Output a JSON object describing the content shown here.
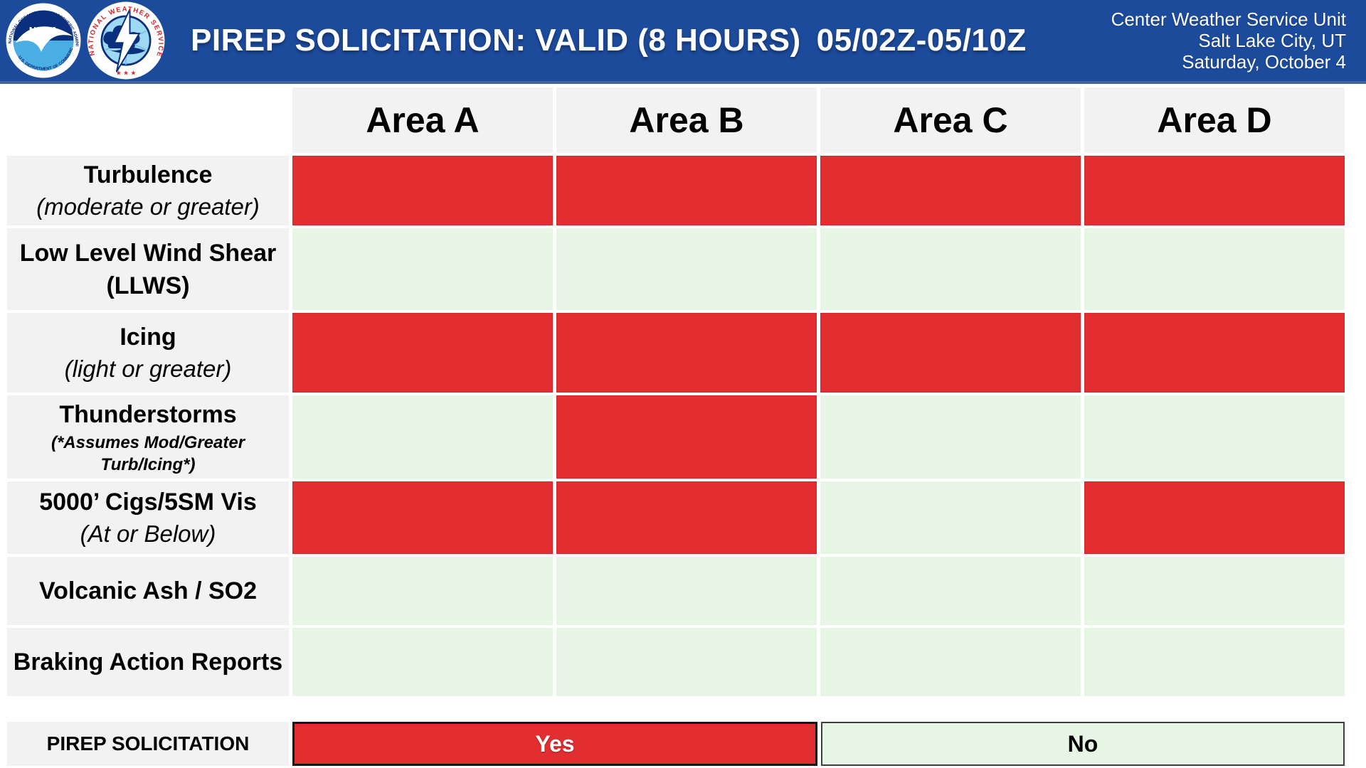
{
  "banner": {
    "title": "PIREP SOLICITATION: VALID (8 HOURS)",
    "valid_period": "05/02Z-05/10Z",
    "unit": "Center Weather Service Unit",
    "location": "Salt Lake City, UT",
    "date": "Saturday, October 4",
    "background_color": "#1D4B9C",
    "logos": [
      "noaa-logo",
      "nws-logo"
    ]
  },
  "chart_data": {
    "type": "table",
    "title": "PIREP SOLICITATION: VALID (8 HOURS) 05/02Z-05/10Z",
    "columns": [
      "Area A",
      "Area B",
      "Area C",
      "Area D"
    ],
    "rows": [
      {
        "label": "Turbulence",
        "sublabel": "(moderate or greater)",
        "sublabel_style": "italic",
        "values": [
          "Yes",
          "Yes",
          "Yes",
          "Yes"
        ]
      },
      {
        "label": "Low Level Wind Shear",
        "sublabel": "(LLWS)",
        "sublabel_style": "bold",
        "values": [
          "No",
          "No",
          "No",
          "No"
        ]
      },
      {
        "label": "Icing",
        "sublabel": "(light or greater)",
        "sublabel_style": "italic",
        "values": [
          "Yes",
          "Yes",
          "Yes",
          "Yes"
        ]
      },
      {
        "label": "Thunderstorms",
        "sublabel": "(*Assumes Mod/Greater Turb/Icing*)",
        "sublabel_style": "bold-italic-small",
        "values": [
          "No",
          "Yes",
          "No",
          "No"
        ]
      },
      {
        "label": "5000’ Cigs/5SM Vis",
        "sublabel": "(At or Below)",
        "sublabel_style": "italic",
        "values": [
          "Yes",
          "Yes",
          "No",
          "Yes"
        ]
      },
      {
        "label": "Volcanic Ash / SO2",
        "sublabel": "",
        "sublabel_style": "",
        "values": [
          "No",
          "No",
          "No",
          "No"
        ]
      },
      {
        "label": "Braking Action Reports",
        "sublabel": "",
        "sublabel_style": "",
        "values": [
          "No",
          "No",
          "No",
          "No"
        ]
      }
    ],
    "value_colors": {
      "Yes": "#E22E30",
      "No": "#E7F6E4"
    },
    "header_bg": "#F2F2F2",
    "legend_position": "bottom"
  },
  "legend": {
    "label": "PIREP SOLICITATION",
    "yes_label": "Yes",
    "no_label": "No"
  }
}
